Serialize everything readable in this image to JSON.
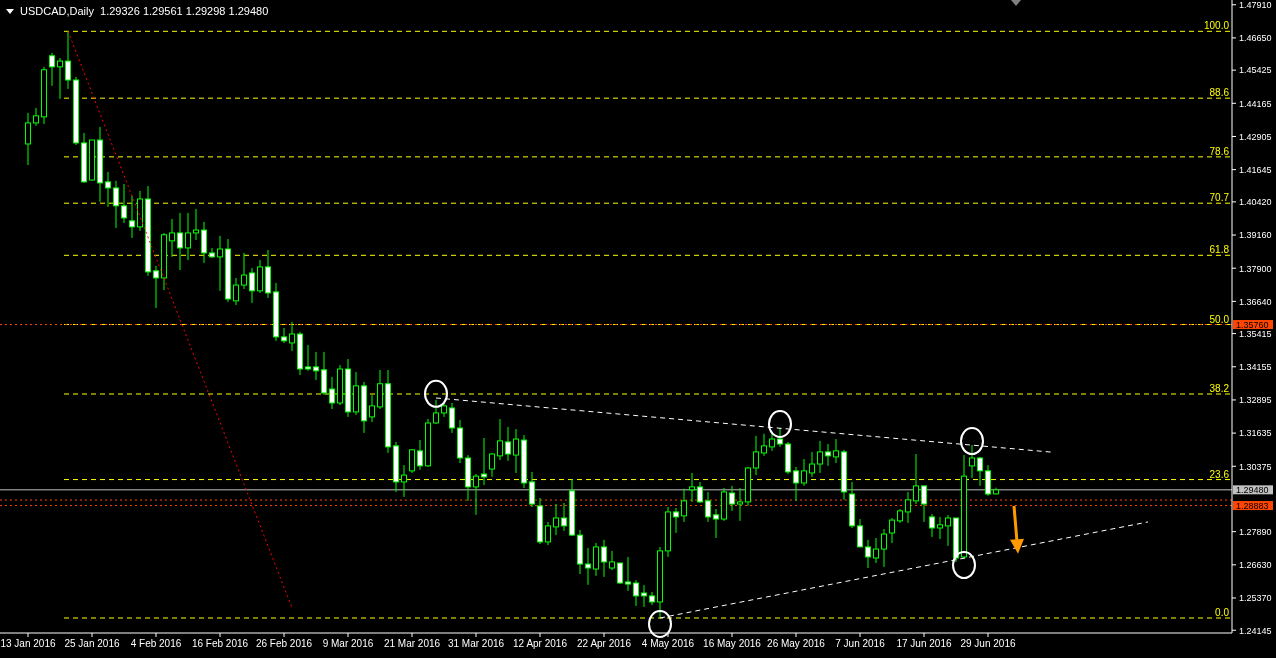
{
  "chart_data": {
    "type": "candlestick",
    "title": "USDCAD,Daily  1.29326 1.29561 1.29298 1.29480",
    "categories": [
      "13 Jan 2016",
      null,
      null,
      null,
      null,
      null,
      null,
      null,
      "25 Jan 2016",
      null,
      null,
      null,
      null,
      null,
      null,
      null,
      "4 Feb 2016",
      null,
      null,
      null,
      null,
      null,
      null,
      null,
      "16 Feb 2016",
      null,
      null,
      null,
      null,
      null,
      null,
      null,
      "26 Feb 2016",
      null,
      null,
      null,
      null,
      null,
      null,
      null,
      "9 Mar 2016",
      null,
      null,
      null,
      null,
      null,
      null,
      null,
      "21 Mar 2016",
      null,
      null,
      null,
      null,
      null,
      null,
      null,
      "31 Mar 2016",
      null,
      null,
      null,
      null,
      null,
      null,
      null,
      "12 Apr 2016",
      null,
      null,
      null,
      null,
      null,
      null,
      null,
      "22 Apr 2016",
      null,
      null,
      null,
      null,
      null,
      null,
      null,
      "4 May 2016",
      null,
      null,
      null,
      null,
      null,
      null,
      null,
      "16 May 2016",
      null,
      null,
      null,
      null,
      null,
      null,
      null,
      "26 May 2016",
      null,
      null,
      null,
      null,
      null,
      null,
      null,
      "7 Jun 2016",
      null,
      null,
      null,
      null,
      null,
      null,
      null,
      "17 Jun 2016",
      null,
      null,
      null,
      null,
      null,
      null,
      null,
      "29 Jun 2016",
      null,
      null,
      null,
      null,
      null,
      null,
      null,
      null,
      null,
      null,
      null,
      null,
      null,
      null,
      null,
      null,
      null,
      null,
      null,
      null,
      null,
      null,
      null,
      null,
      null,
      null,
      null,
      null,
      null,
      null
    ],
    "ohlc": [
      [
        1.4262,
        1.438,
        1.4182,
        1.4342
      ],
      [
        1.4342,
        1.4399,
        1.4331,
        1.4369
      ],
      [
        1.4365,
        1.4555,
        1.4338,
        1.4544
      ],
      [
        1.4597,
        1.4608,
        1.4483,
        1.4555
      ],
      [
        1.4555,
        1.4589,
        1.4433,
        1.4577
      ],
      [
        1.4577,
        1.469,
        1.4471,
        1.4505
      ],
      [
        1.4505,
        1.4517,
        1.4258,
        1.4266
      ],
      [
        1.4266,
        1.4304,
        1.4114,
        1.4118
      ],
      [
        1.4125,
        1.4277,
        1.4122,
        1.4277
      ],
      [
        1.4277,
        1.4327,
        1.4042,
        1.4114
      ],
      [
        1.4118,
        1.4156,
        1.4023,
        1.4095
      ],
      [
        1.4095,
        1.4122,
        1.3943,
        1.4027
      ],
      [
        1.4027,
        1.411,
        1.3962,
        1.3981
      ],
      [
        1.397,
        1.4065,
        1.3905,
        1.3947
      ],
      [
        1.3947,
        1.4084,
        1.3932,
        1.4053
      ],
      [
        1.4053,
        1.4102,
        1.3761,
        1.3776
      ],
      [
        1.378,
        1.3799,
        1.3639,
        1.3753
      ],
      [
        1.3753,
        1.3924,
        1.3707,
        1.3917
      ],
      [
        1.3894,
        1.3977,
        1.3833,
        1.3924
      ],
      [
        1.3924,
        1.4,
        1.3783,
        1.3867
      ],
      [
        1.3867,
        1.4,
        1.3821,
        1.3924
      ],
      [
        1.3924,
        1.4015,
        1.3897,
        1.3935
      ],
      [
        1.3935,
        1.3966,
        1.381,
        1.3848
      ],
      [
        1.3848,
        1.3867,
        1.3829,
        1.3833
      ],
      [
        1.3833,
        1.3913,
        1.3704,
        1.3863
      ],
      [
        1.3863,
        1.3901,
        1.3662,
        1.3673
      ],
      [
        1.3666,
        1.3753,
        1.365,
        1.3726
      ],
      [
        1.3726,
        1.3848,
        1.3711,
        1.3764
      ],
      [
        1.3772,
        1.3791,
        1.3658,
        1.3704
      ],
      [
        1.3704,
        1.3821,
        1.3696,
        1.3795
      ],
      [
        1.3795,
        1.3859,
        1.3677,
        1.3696
      ],
      [
        1.37,
        1.3734,
        1.3514,
        1.3529
      ],
      [
        1.3529,
        1.3563,
        1.3506,
        1.3514
      ],
      [
        1.3506,
        1.3586,
        1.3476,
        1.354
      ],
      [
        1.354,
        1.3548,
        1.3384,
        1.3407
      ],
      [
        1.3415,
        1.3498,
        1.34,
        1.3407
      ],
      [
        1.3415,
        1.3472,
        1.3365,
        1.34
      ],
      [
        1.3404,
        1.3472,
        1.3308,
        1.3316
      ],
      [
        1.3331,
        1.3377,
        1.3255,
        1.3278
      ],
      [
        1.3278,
        1.3422,
        1.327,
        1.3407
      ],
      [
        1.3407,
        1.3445,
        1.3225,
        1.3244
      ],
      [
        1.3244,
        1.3396,
        1.3232,
        1.3343
      ],
      [
        1.3343,
        1.3358,
        1.3164,
        1.321
      ],
      [
        1.3225,
        1.3308,
        1.3206,
        1.3267
      ],
      [
        1.3263,
        1.3403,
        1.3255,
        1.3351
      ],
      [
        1.3351,
        1.3403,
        1.3088,
        1.3111
      ],
      [
        1.3115,
        1.313,
        1.294,
        1.2978
      ],
      [
        1.2978,
        1.3042,
        1.2921,
        1.3004
      ],
      [
        1.302,
        1.3103,
        1.3012,
        1.31
      ],
      [
        1.3096,
        1.3137,
        1.3024,
        1.3039
      ],
      [
        1.3039,
        1.3217,
        1.3035,
        1.3202
      ],
      [
        1.3202,
        1.329,
        1.3198,
        1.324
      ],
      [
        1.324,
        1.3278,
        1.3225,
        1.3267
      ],
      [
        1.3259,
        1.3278,
        1.3164,
        1.3183
      ],
      [
        1.3183,
        1.3213,
        1.305,
        1.3069
      ],
      [
        1.3069,
        1.308,
        1.2906,
        1.2959
      ],
      [
        1.2959,
        1.3008,
        1.2853,
        1.3
      ],
      [
        1.3008,
        1.3145,
        1.2966,
        1.2997
      ],
      [
        1.3027,
        1.3088,
        1.2997,
        1.3084
      ],
      [
        1.3077,
        1.3217,
        1.3061,
        1.3134
      ],
      [
        1.313,
        1.3187,
        1.3058,
        1.3084
      ],
      [
        1.308,
        1.3179,
        1.3012,
        1.3141
      ],
      [
        1.3137,
        1.3156,
        1.2955,
        1.2974
      ],
      [
        1.2978,
        1.3016,
        1.2883,
        1.2894
      ],
      [
        1.2887,
        1.2917,
        1.2742,
        1.275
      ],
      [
        1.275,
        1.2826,
        1.2738,
        1.2811
      ],
      [
        1.2807,
        1.2894,
        1.2776,
        1.2841
      ],
      [
        1.2841,
        1.2898,
        1.2792,
        1.2811
      ],
      [
        1.2944,
        1.2989,
        1.2773,
        1.2776
      ],
      [
        1.2776,
        1.2795,
        1.2628,
        1.2666
      ],
      [
        1.2666,
        1.2727,
        1.2587,
        1.2651
      ],
      [
        1.2647,
        1.2746,
        1.2621,
        1.2731
      ],
      [
        1.2731,
        1.2758,
        1.2617,
        1.2674
      ],
      [
        1.2651,
        1.2716,
        1.2643,
        1.2674
      ],
      [
        1.267,
        1.267,
        1.259,
        1.2594
      ],
      [
        1.2598,
        1.2693,
        1.2564,
        1.259
      ],
      [
        1.2594,
        1.2605,
        1.2507,
        1.2545
      ],
      [
        1.2556,
        1.2586,
        1.2503,
        1.2545
      ],
      [
        1.2545,
        1.256,
        1.251,
        1.2522
      ],
      [
        1.2522,
        1.2731,
        1.2461,
        1.2716
      ],
      [
        1.2716,
        1.2883,
        1.2693,
        1.2864
      ],
      [
        1.2864,
        1.2879,
        1.2784,
        1.2845
      ],
      [
        1.2849,
        1.2952,
        1.2826,
        1.2906
      ],
      [
        1.2948,
        1.3012,
        1.2902,
        1.2959
      ],
      [
        1.2959,
        1.2978,
        1.2898,
        1.2902
      ],
      [
        1.2906,
        1.294,
        1.2826,
        1.2845
      ],
      [
        1.2853,
        1.2875,
        1.2765,
        1.2837
      ],
      [
        1.2837,
        1.2955,
        1.283,
        1.294
      ],
      [
        1.2936,
        1.2963,
        1.2868,
        1.2894
      ],
      [
        1.2894,
        1.2955,
        1.283,
        1.2902
      ],
      [
        1.2902,
        1.3035,
        1.2887,
        1.3031
      ],
      [
        1.3031,
        1.3153,
        1.3004,
        1.3092
      ],
      [
        1.3088,
        1.3161,
        1.3077,
        1.3115
      ],
      [
        1.3111,
        1.3168,
        1.3096,
        1.3141
      ],
      [
        1.3141,
        1.3183,
        1.3111,
        1.3122
      ],
      [
        1.3122,
        1.313,
        1.3008,
        1.3016
      ],
      [
        1.302,
        1.3035,
        1.2906,
        1.2974
      ],
      [
        1.2974,
        1.3065,
        1.2963,
        1.302
      ],
      [
        1.3012,
        1.3092,
        1.2997,
        1.3046
      ],
      [
        1.3046,
        1.3134,
        1.3012,
        1.3092
      ],
      [
        1.3092,
        1.3122,
        1.3039,
        1.3077
      ],
      [
        1.3073,
        1.3141,
        1.305,
        1.3096
      ],
      [
        1.3092,
        1.31,
        1.291,
        1.294
      ],
      [
        1.2932,
        1.2978,
        1.2803,
        1.2811
      ],
      [
        1.2811,
        1.2837,
        1.2731,
        1.2731
      ],
      [
        1.2731,
        1.2758,
        1.2651,
        1.2693
      ],
      [
        1.2689,
        1.2765,
        1.267,
        1.2723
      ],
      [
        1.2723,
        1.2799,
        1.2655,
        1.278
      ],
      [
        1.2784,
        1.2841,
        1.2746,
        1.2833
      ],
      [
        1.283,
        1.2875,
        1.2822,
        1.2868
      ],
      [
        1.2864,
        1.294,
        1.2822,
        1.291
      ],
      [
        1.2906,
        1.3084,
        1.2894,
        1.2963
      ],
      [
        1.2963,
        1.2963,
        1.2826,
        1.2894
      ],
      [
        1.2845,
        1.2856,
        1.2769,
        1.2803
      ],
      [
        1.2803,
        1.2845,
        1.2761,
        1.2815
      ],
      [
        1.2811,
        1.2852,
        1.2735,
        1.2841
      ],
      [
        1.2841,
        1.2841,
        1.2674,
        1.2689
      ],
      [
        1.2693,
        1.308,
        1.2685,
        1.3
      ],
      [
        1.3039,
        1.3118,
        1.2993,
        1.3069
      ],
      [
        1.3069,
        1.3073,
        1.2963,
        1.302
      ],
      [
        1.302,
        1.3042,
        1.2925,
        1.2932
      ],
      [
        1.29326,
        1.29561,
        1.29298,
        1.2948
      ],
      null,
      null,
      null,
      null,
      null,
      null,
      null,
      null,
      null,
      null,
      null,
      null,
      null,
      null,
      null,
      null,
      null,
      null,
      null,
      null,
      null,
      null,
      null,
      null,
      null,
      null,
      null,
      null,
      null
    ],
    "series": [
      {
        "type": "line",
        "values": [
          null,
          null,
          null,
          null,
          null,
          1.469,
          null,
          null,
          null,
          null,
          null,
          null,
          null,
          null,
          null,
          null,
          null,
          null,
          null,
          null,
          null,
          null,
          null,
          null,
          null,
          null,
          null,
          null,
          null,
          null,
          null,
          null,
          null,
          1.25,
          null,
          null,
          null,
          null,
          null,
          null,
          null,
          null,
          null,
          null,
          null,
          null,
          null,
          null,
          null,
          null,
          null,
          null,
          null,
          null,
          null,
          null,
          null,
          null,
          null,
          null,
          null,
          null,
          null,
          null,
          null,
          null,
          null,
          null,
          null,
          null,
          null,
          null,
          null,
          null,
          null,
          null,
          null,
          null,
          null,
          null,
          null,
          null,
          null,
          null,
          null,
          null,
          null,
          null,
          null,
          null,
          null,
          null,
          null,
          null,
          null,
          null,
          null,
          null,
          null,
          null,
          null,
          null,
          null,
          null,
          null,
          null,
          null,
          null,
          null,
          null,
          null,
          null,
          null,
          null,
          null,
          null,
          null,
          null,
          null,
          null,
          null,
          null,
          null,
          null,
          null,
          null,
          null,
          null,
          null,
          null,
          null,
          null,
          null,
          null,
          null,
          null,
          null,
          null,
          null,
          null,
          null,
          null,
          null,
          null,
          null,
          null,
          null,
          null,
          null,
          null,
          null
        ],
        "color": "#ff0000",
        "line_style": "dotted"
      },
      {
        "type": "line",
        "values": [
          null,
          null,
          null,
          null,
          null,
          null,
          null,
          null,
          null,
          null,
          null,
          null,
          null,
          null,
          null,
          null,
          null,
          null,
          null,
          null,
          null,
          null,
          null,
          null,
          null,
          null,
          null,
          null,
          null,
          null,
          null,
          null,
          null,
          null,
          null,
          null,
          null,
          null,
          null,
          null,
          null,
          null,
          null,
          null,
          null,
          null,
          null,
          null,
          null,
          null,
          null,
          1.3297,
          null,
          null,
          null,
          null,
          null,
          null,
          null,
          null,
          null,
          null,
          null,
          null,
          null,
          null,
          null,
          null,
          null,
          null,
          null,
          null,
          null,
          null,
          null,
          null,
          null,
          null,
          null,
          null,
          null,
          null,
          null,
          null,
          null,
          null,
          null,
          null,
          null,
          null,
          null,
          null,
          null,
          null,
          null,
          null,
          null,
          null,
          null,
          null,
          null,
          null,
          null,
          null,
          null,
          null,
          null,
          null,
          null,
          null,
          null,
          null,
          null,
          null,
          null,
          null,
          null,
          null,
          null,
          null,
          null,
          null,
          null,
          null,
          null,
          null,
          null,
          null,
          1.3091,
          null,
          null,
          null,
          null,
          null,
          null,
          null,
          null,
          null,
          null,
          null,
          null,
          null,
          null,
          null,
          null,
          null,
          null,
          null,
          null,
          null,
          null
        ],
        "color": "#ffffff",
        "line_style": "dashed"
      },
      {
        "type": "line",
        "values": [
          null,
          null,
          null,
          null,
          null,
          null,
          null,
          null,
          null,
          null,
          null,
          null,
          null,
          null,
          null,
          null,
          null,
          null,
          null,
          null,
          null,
          null,
          null,
          null,
          null,
          null,
          null,
          null,
          null,
          null,
          null,
          null,
          null,
          null,
          null,
          null,
          null,
          null,
          null,
          null,
          null,
          null,
          null,
          null,
          null,
          null,
          null,
          null,
          null,
          null,
          null,
          null,
          null,
          null,
          null,
          null,
          null,
          null,
          null,
          null,
          null,
          null,
          null,
          null,
          null,
          null,
          null,
          null,
          null,
          null,
          null,
          null,
          null,
          null,
          null,
          null,
          null,
          null,
          null,
          1.2461,
          null,
          null,
          null,
          null,
          null,
          null,
          null,
          null,
          null,
          null,
          null,
          null,
          null,
          null,
          null,
          null,
          null,
          null,
          null,
          null,
          null,
          null,
          null,
          null,
          null,
          null,
          null,
          null,
          null,
          null,
          null,
          null,
          null,
          null,
          null,
          null,
          null,
          null,
          null,
          null,
          null,
          null,
          null,
          null,
          null,
          null,
          null,
          null,
          null,
          null,
          null,
          null,
          null,
          null,
          null,
          null,
          null,
          null,
          null,
          null,
          1.2826,
          null,
          null,
          null,
          null,
          null,
          null,
          null,
          null,
          null,
          null
        ],
        "color": "#ffffff",
        "line_style": "dashed"
      }
    ],
    "ylim": [
      1.2404,
      1.4809
    ],
    "yticks": [
      {
        "value": 1.4791,
        "label": "1.47910"
      },
      {
        "value": 1.4665,
        "label": "1.46650"
      },
      {
        "value": 1.45425,
        "label": "1.45425"
      },
      {
        "value": 1.44165,
        "label": "1.44165"
      },
      {
        "value": 1.42905,
        "label": "1.42905"
      },
      {
        "value": 1.41645,
        "label": "1.41645"
      },
      {
        "value": 1.4042,
        "label": "1.40420"
      },
      {
        "value": 1.3916,
        "label": "1.39160"
      },
      {
        "value": 1.379,
        "label": "1.37900"
      },
      {
        "value": 1.3664,
        "label": "1.36640"
      },
      {
        "value": 1.35415,
        "label": "1.35415"
      },
      {
        "value": 1.34155,
        "label": "1.34155"
      },
      {
        "value": 1.32895,
        "label": "1.32895"
      },
      {
        "value": 1.31635,
        "label": "1.31635"
      },
      {
        "value": 1.30375,
        "label": "1.30375"
      },
      {
        "value": 1.2789,
        "label": "1.27890"
      },
      {
        "value": 1.2663,
        "label": "1.26630"
      },
      {
        "value": 1.2537,
        "label": "1.25370"
      },
      {
        "value": 1.24145,
        "label": "1.24145"
      }
    ],
    "ref_lines": [
      {
        "axis": "y",
        "value": 1.469,
        "color": "#ffff00",
        "line_style": "dashed"
      },
      {
        "axis": "y",
        "value": 1.4436,
        "color": "#ffff00",
        "line_style": "dashed"
      },
      {
        "axis": "y",
        "value": 1.4213,
        "color": "#ffff00",
        "line_style": "dashed"
      },
      {
        "axis": "y",
        "value": 1.4037,
        "color": "#ffff00",
        "line_style": "dashed"
      },
      {
        "axis": "y",
        "value": 1.3839,
        "color": "#ffff00",
        "line_style": "dashed"
      },
      {
        "axis": "y",
        "value": 1.3576,
        "color": "#ffff00",
        "line_style": "dashed"
      },
      {
        "axis": "y",
        "value": 1.3312,
        "color": "#ffff00",
        "line_style": "dashed"
      },
      {
        "axis": "y",
        "value": 1.2987,
        "color": "#ffff00",
        "line_style": "dashed"
      },
      {
        "axis": "y",
        "value": 1.2461,
        "color": "#ffff00",
        "line_style": "dashed"
      },
      {
        "axis": "y",
        "value": 1.3576,
        "label": "1.35760",
        "color": "#ff4500",
        "line_style": "dotted"
      },
      {
        "axis": "y",
        "value": 1.2948,
        "label": "1.29480",
        "color": "#c0c0c0",
        "line_style": "solid"
      },
      {
        "axis": "y",
        "value": 1.2909,
        "label": null,
        "color": "#ff4500",
        "line_style": "dotted"
      },
      {
        "axis": "y",
        "value": 1.28883,
        "label": "1.28883",
        "color": "#ff4500",
        "line_style": "dotted"
      }
    ],
    "annotations": [
      {
        "text": "100.0",
        "y": 1.469
      },
      {
        "text": "88.6",
        "y": 1.4436
      },
      {
        "text": "78.6",
        "y": 1.4213
      },
      {
        "text": "70.7",
        "y": 1.4037
      },
      {
        "text": "61.8",
        "y": 1.3839
      },
      {
        "text": "50.0",
        "y": 1.3576
      },
      {
        "text": "38.2",
        "y": 1.3312
      },
      {
        "text": "23.6",
        "y": 1.2987
      },
      {
        "text": "0.0",
        "y": 1.2461
      }
    ]
  }
}
